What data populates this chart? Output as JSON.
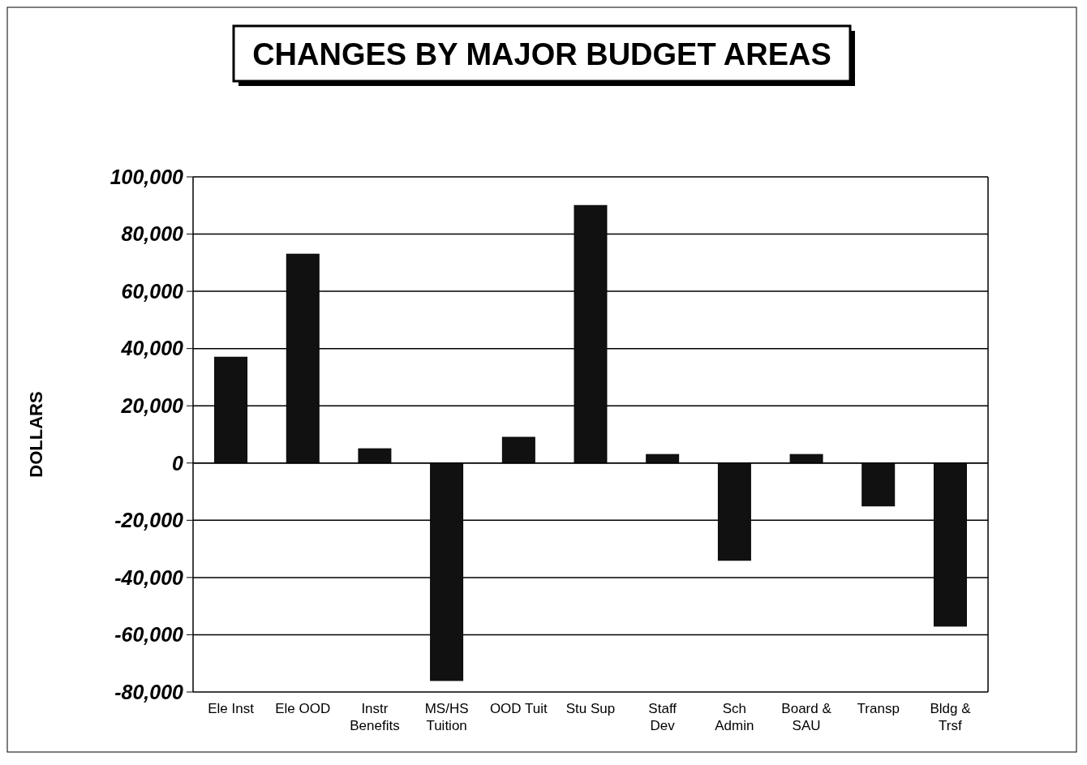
{
  "chart_data": {
    "type": "bar",
    "title": "CHANGES BY MAJOR BUDGET AREAS",
    "ylabel": "DOLLARS",
    "categories": [
      "Ele Inst",
      "Ele OOD",
      "Instr Benefits",
      "MS/HS Tuition",
      "OOD Tuit",
      "Stu Sup",
      "Staff Dev",
      "Sch Admin",
      "Board & SAU",
      "Transp",
      "Bldg & Trsf"
    ],
    "values": [
      37000,
      73000,
      5000,
      -76000,
      9000,
      90000,
      3000,
      -34000,
      3000,
      -15000,
      -57000
    ],
    "color": "#111111",
    "ylim": [
      -80000,
      100000
    ],
    "yticks": [
      {
        "value": -80000,
        "label": "-80,000"
      },
      {
        "value": -60000,
        "label": "-60,000"
      },
      {
        "value": -40000,
        "label": "-40,000"
      },
      {
        "value": -20000,
        "label": "-20,000"
      },
      {
        "value": 0,
        "label": "0"
      },
      {
        "value": 20000,
        "label": "20,000"
      },
      {
        "value": 40000,
        "label": "40,000"
      },
      {
        "value": 60000,
        "label": "60,000"
      },
      {
        "value": 80000,
        "label": "80,000"
      },
      {
        "value": 100000,
        "label": "100,000"
      }
    ],
    "grid": "y"
  }
}
